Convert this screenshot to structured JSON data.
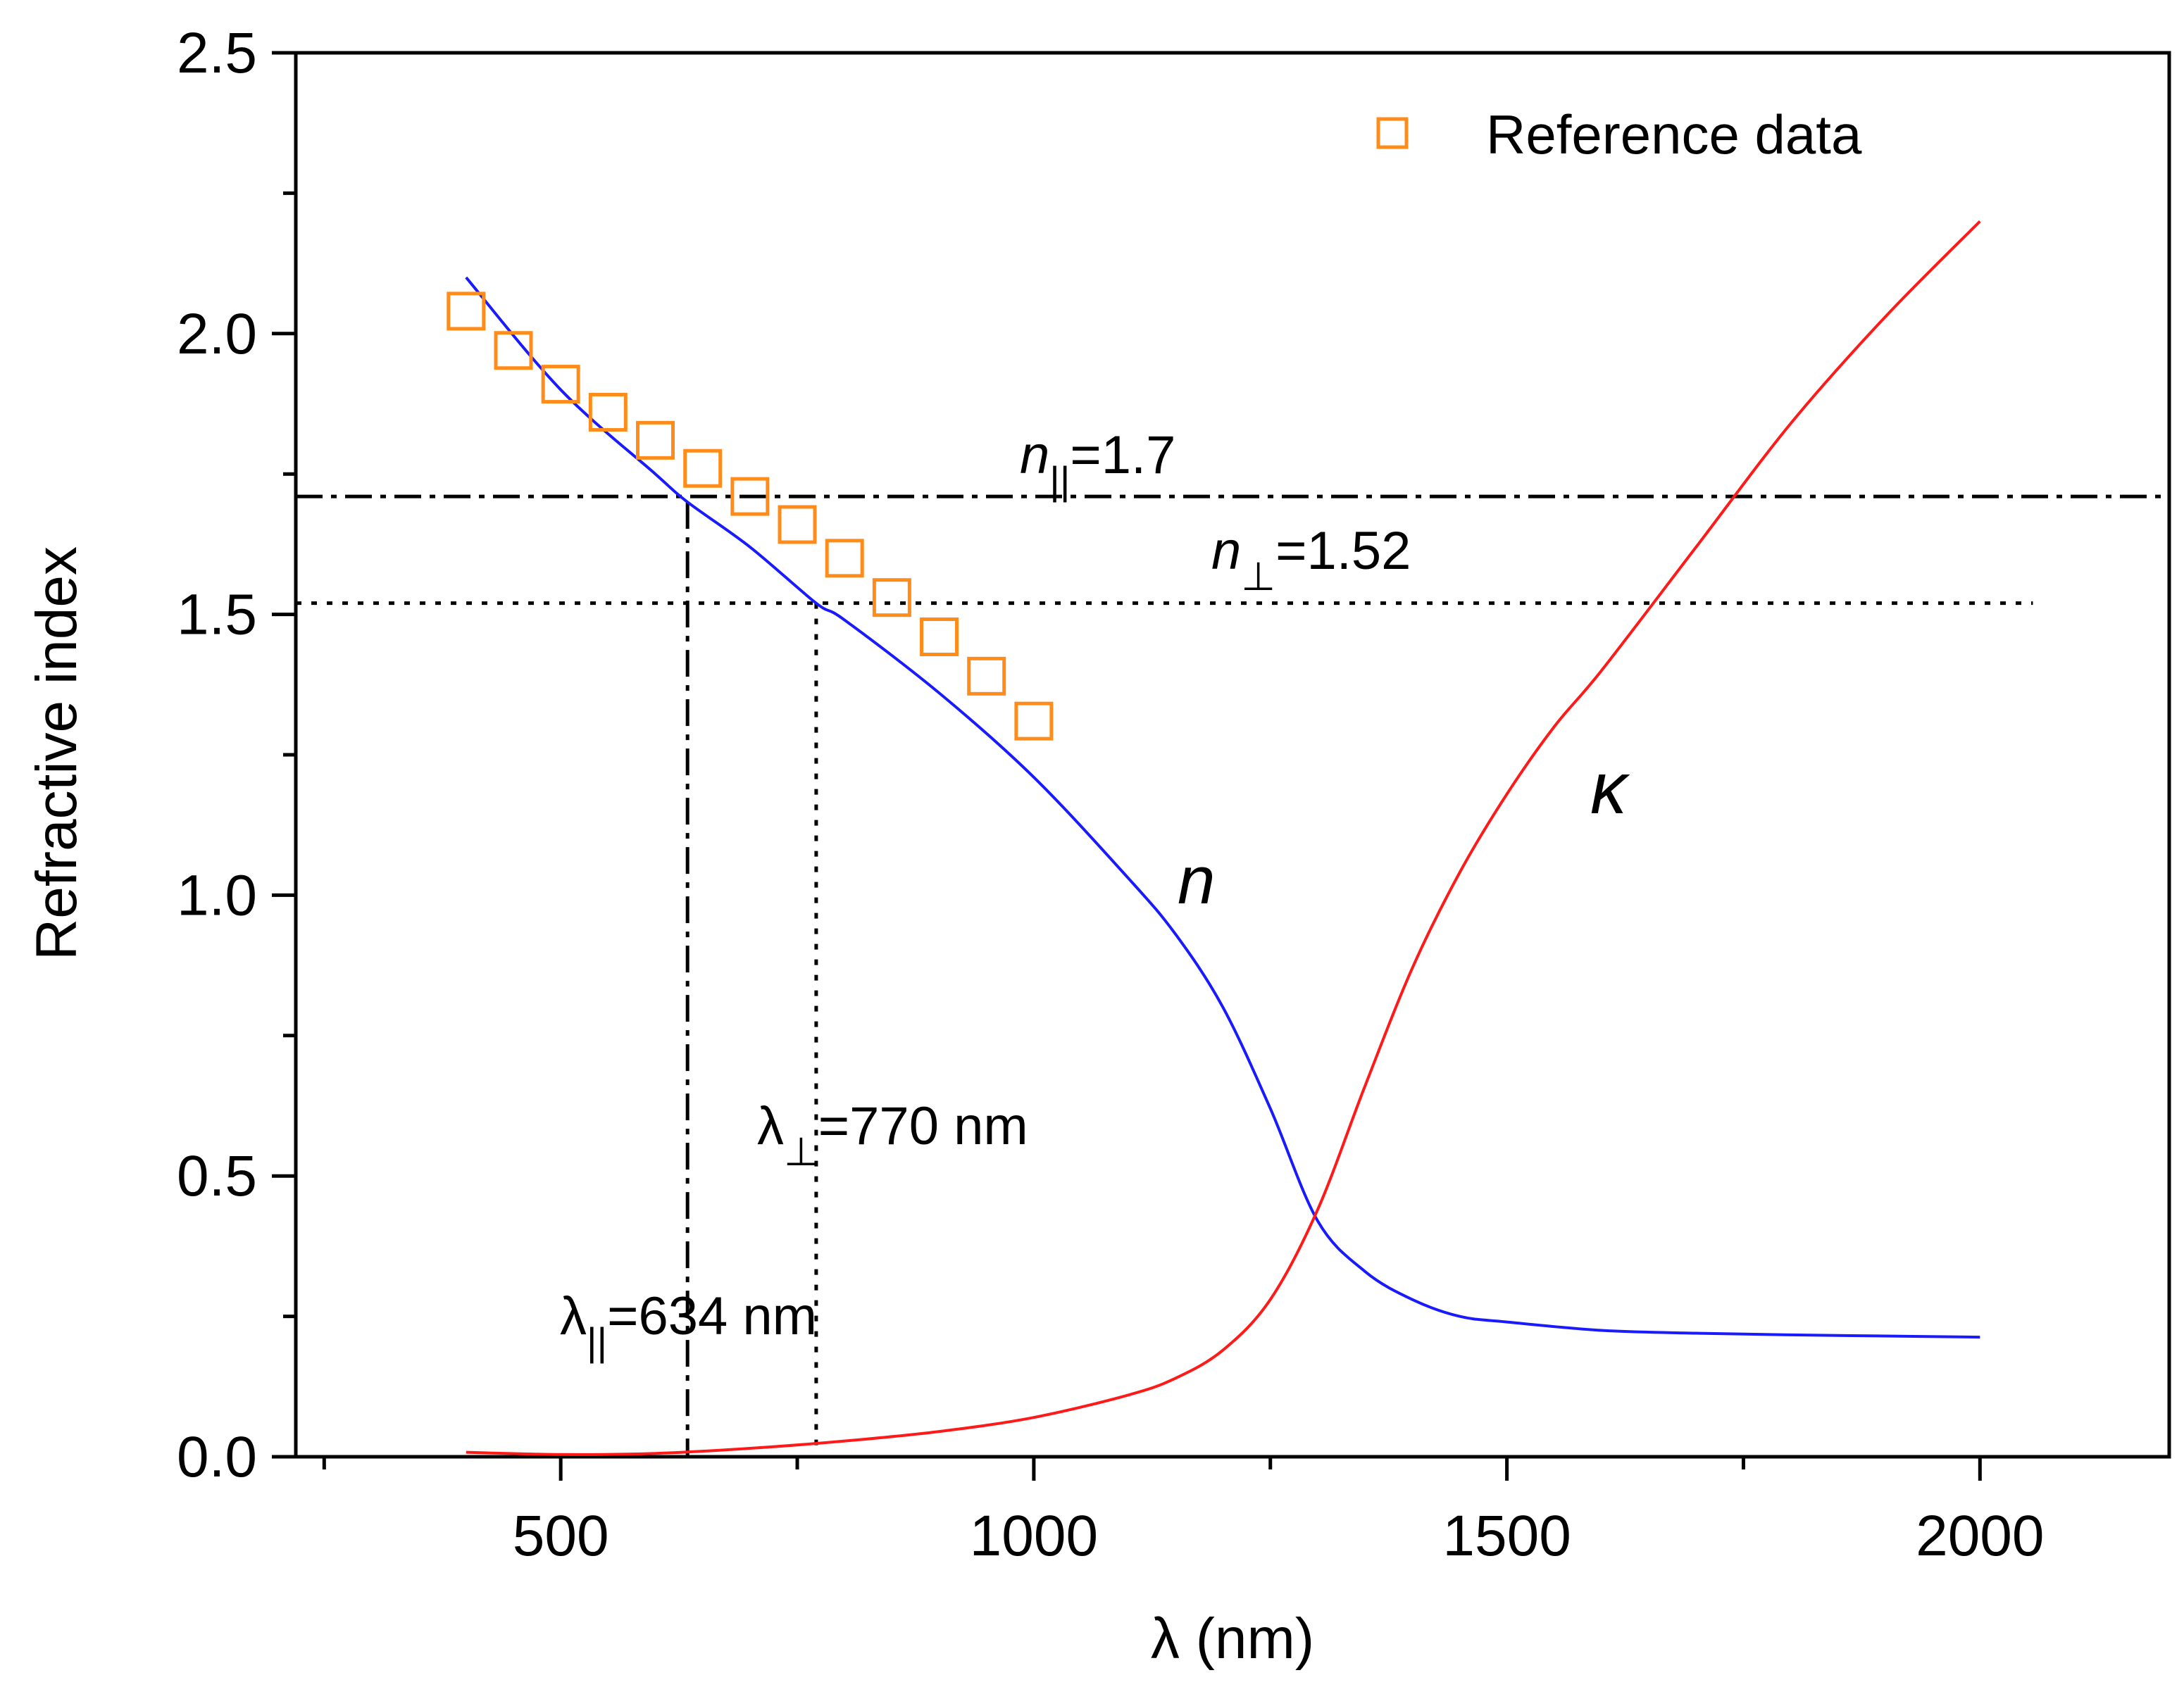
{
  "chart_data": {
    "type": "line",
    "title": "",
    "xlabel": "λ (nm)",
    "ylabel": "Refractive index",
    "xlim": [
      220,
      2200
    ],
    "ylim": [
      0,
      2.5
    ],
    "x_ticks": [
      500,
      1000,
      1500,
      2000
    ],
    "x_tick_labels": [
      "500",
      "1000",
      "1500",
      "2000"
    ],
    "y_ticks": [
      0.0,
      0.5,
      1.0,
      1.5,
      2.0,
      2.5
    ],
    "y_tick_labels": [
      "0.0",
      "0.5",
      "1.0",
      "1.5",
      "2.0",
      "2.5"
    ],
    "colors": {
      "n": "#1a1aff",
      "kappa": "#ff1a1a",
      "reference": "#ff8c1a",
      "axis": "#000000"
    },
    "series": [
      {
        "name": "n",
        "label": "n",
        "x": [
          400,
          500,
          600,
          634,
          700,
          770,
          800,
          900,
          1000,
          1100,
          1150,
          1200,
          1250,
          1300,
          1350,
          1400,
          1450,
          1500,
          1600,
          1700,
          1800,
          1900,
          2000
        ],
        "y": [
          2.1,
          1.9,
          1.75,
          1.7,
          1.62,
          1.52,
          1.49,
          1.36,
          1.21,
          1.03,
          0.93,
          0.8,
          0.62,
          0.42,
          0.33,
          0.28,
          0.25,
          0.24,
          0.225,
          0.22,
          0.217,
          0.215,
          0.213
        ]
      },
      {
        "name": "kappa",
        "label": "κ",
        "x": [
          400,
          500,
          600,
          700,
          800,
          900,
          1000,
          1100,
          1150,
          1200,
          1250,
          1300,
          1350,
          1400,
          1450,
          1500,
          1550,
          1600,
          1700,
          1800,
          1900,
          2000
        ],
        "y": [
          0.008,
          0.004,
          0.006,
          0.015,
          0.028,
          0.045,
          0.07,
          0.11,
          0.14,
          0.19,
          0.28,
          0.44,
          0.66,
          0.87,
          1.04,
          1.18,
          1.3,
          1.4,
          1.62,
          1.84,
          2.03,
          2.2
        ]
      },
      {
        "name": "Reference data",
        "label": "Reference data",
        "marker": "open-square",
        "x": [
          400,
          450,
          500,
          550,
          600,
          650,
          700,
          750,
          800,
          850,
          900,
          950,
          1000
        ],
        "y": [
          2.04,
          1.97,
          1.91,
          1.86,
          1.81,
          1.76,
          1.71,
          1.66,
          1.6,
          1.53,
          1.46,
          1.39,
          1.31
        ]
      }
    ],
    "reference_lines": [
      {
        "orientation": "horizontal",
        "value": 1.71,
        "style": "dash-dot",
        "label": "n_∥=1.7"
      },
      {
        "orientation": "horizontal",
        "value": 1.52,
        "style": "dotted",
        "label": "n_⊥=1.52"
      },
      {
        "orientation": "vertical",
        "value": 634,
        "style": "dash-dot",
        "label": "λ_∥=634 nm"
      },
      {
        "orientation": "vertical",
        "value": 770,
        "style": "dotted",
        "label": "λ_⊥=770 nm"
      }
    ],
    "annotations": {
      "n_par": {
        "symbol": "n",
        "sub": "||",
        "rest": "=1.7"
      },
      "n_perp": {
        "symbol": "n",
        "sub": "⊥",
        "rest": "=1.52"
      },
      "lambda_perp": {
        "symbol": "λ",
        "sub": "⊥",
        "rest": "=770 nm"
      },
      "lambda_par": {
        "symbol": "λ",
        "sub": "||",
        "rest": "=634 nm"
      },
      "n_curve": "n",
      "kappa_curve": "κ"
    },
    "legend": {
      "position": "top-right",
      "entries": [
        "Reference data"
      ]
    }
  }
}
